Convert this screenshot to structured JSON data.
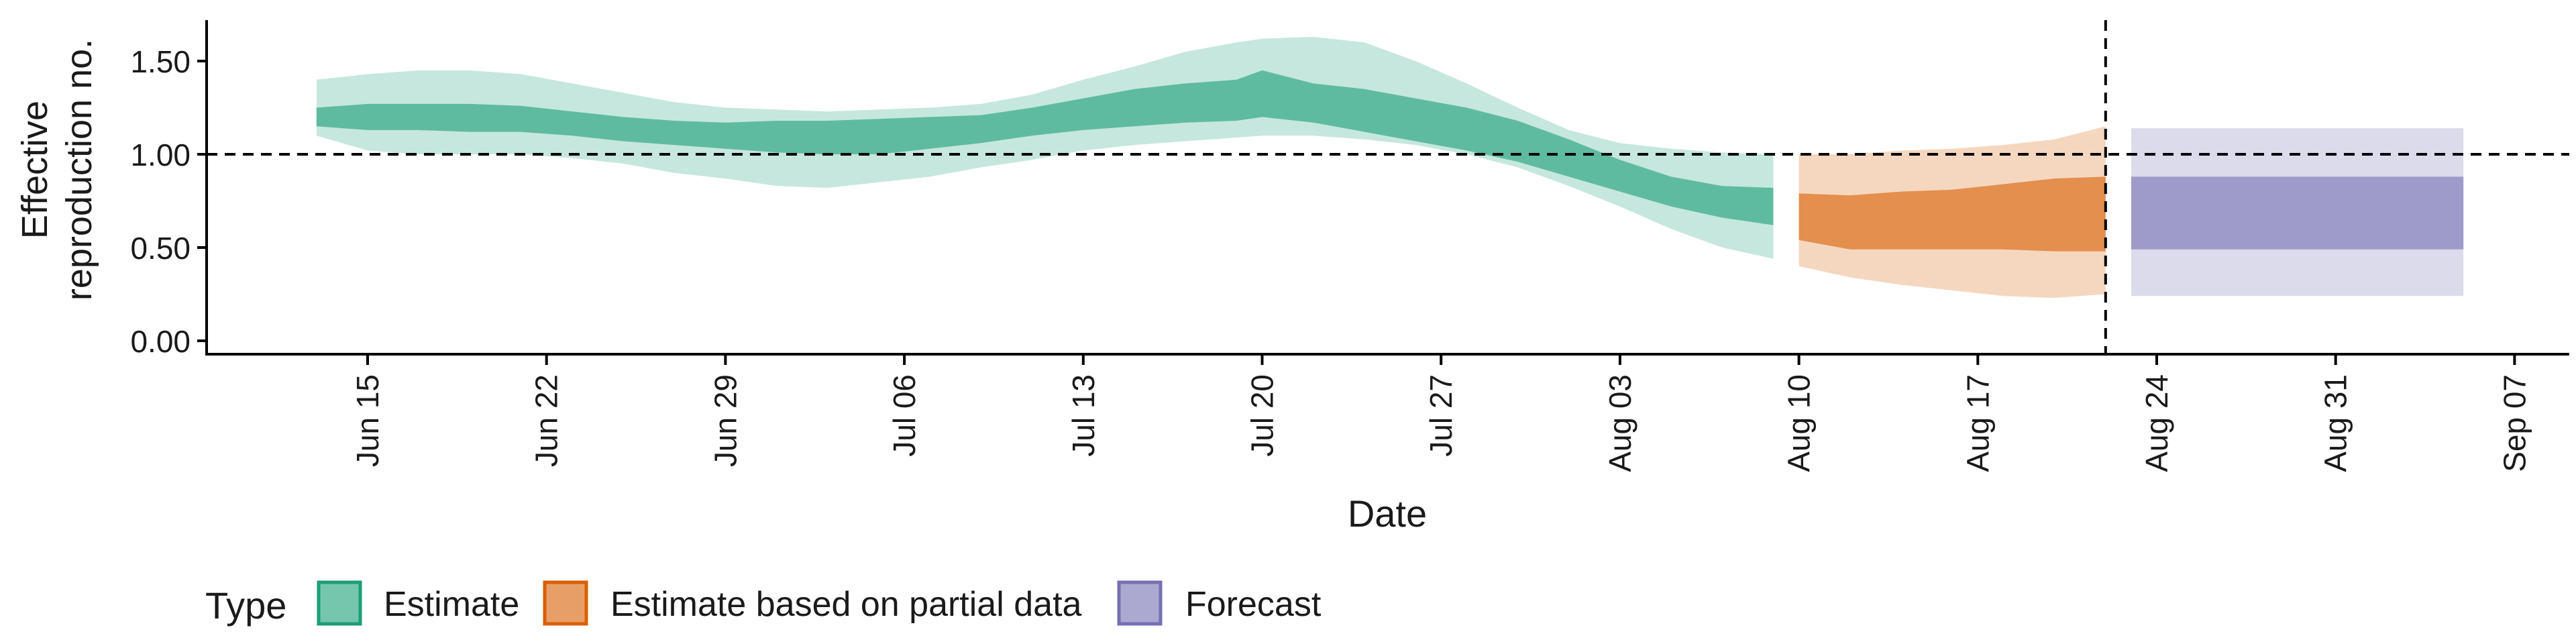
{
  "chart_data": {
    "type": "area",
    "title": "",
    "xlabel": "Date",
    "ylabel_lines": [
      "Effective",
      "reproduction no."
    ],
    "x_ticks": [
      "Jun 15",
      "Jun 22",
      "Jun 29",
      "Jul 06",
      "Jul 13",
      "Jul 20",
      "Jul 27",
      "Aug 03",
      "Aug 10",
      "Aug 17",
      "Aug 24",
      "Aug 31",
      "Sep 07"
    ],
    "y_ticks": [
      "0.00",
      "0.50",
      "1.00",
      "1.50"
    ],
    "ylim": [
      0,
      1.5
    ],
    "reference_line_y": 1.0,
    "forecast_start_date": "Aug 22",
    "legend": {
      "title": "Type",
      "position": "bottom",
      "items": [
        "Estimate",
        "Estimate based on partial data",
        "Forecast"
      ]
    },
    "colors": {
      "Estimate": "#1b9e77",
      "Estimate based on partial data": "#d95f02",
      "Forecast": "#7570b3"
    },
    "series": [
      {
        "name": "Estimate",
        "x": [
          "Jun 13",
          "Jun 15",
          "Jun 17",
          "Jun 19",
          "Jun 21",
          "Jun 23",
          "Jun 25",
          "Jun 27",
          "Jun 29",
          "Jul 01",
          "Jul 03",
          "Jul 05",
          "Jul 07",
          "Jul 09",
          "Jul 11",
          "Jul 13",
          "Jul 15",
          "Jul 17",
          "Jul 19",
          "Jul 20",
          "Jul 22",
          "Jul 24",
          "Jul 26",
          "Jul 28",
          "Jul 30",
          "Aug 01",
          "Aug 03",
          "Aug 05",
          "Aug 07",
          "Aug 09"
        ],
        "lower_outer": [
          1.1,
          1.02,
          1.0,
          1.0,
          1.0,
          0.98,
          0.95,
          0.9,
          0.87,
          0.83,
          0.82,
          0.85,
          0.88,
          0.93,
          0.97,
          1.02,
          1.05,
          1.07,
          1.09,
          1.1,
          1.1,
          1.08,
          1.05,
          1.0,
          0.93,
          0.83,
          0.72,
          0.6,
          0.5,
          0.44
        ],
        "lower_inner": [
          1.15,
          1.13,
          1.13,
          1.12,
          1.12,
          1.1,
          1.07,
          1.05,
          1.03,
          1.01,
          1.0,
          1.0,
          1.03,
          1.06,
          1.1,
          1.13,
          1.15,
          1.17,
          1.18,
          1.2,
          1.17,
          1.12,
          1.07,
          1.02,
          0.96,
          0.88,
          0.8,
          0.72,
          0.66,
          0.62
        ],
        "upper_inner": [
          1.25,
          1.27,
          1.27,
          1.27,
          1.26,
          1.23,
          1.2,
          1.18,
          1.17,
          1.18,
          1.18,
          1.19,
          1.2,
          1.21,
          1.25,
          1.3,
          1.35,
          1.38,
          1.4,
          1.45,
          1.38,
          1.35,
          1.3,
          1.25,
          1.18,
          1.08,
          0.97,
          0.88,
          0.83,
          0.82
        ],
        "upper_outer": [
          1.4,
          1.43,
          1.45,
          1.45,
          1.43,
          1.38,
          1.33,
          1.28,
          1.25,
          1.24,
          1.23,
          1.24,
          1.25,
          1.27,
          1.32,
          1.4,
          1.47,
          1.55,
          1.6,
          1.62,
          1.63,
          1.6,
          1.5,
          1.38,
          1.25,
          1.13,
          1.06,
          1.03,
          1.01,
          1.0
        ]
      },
      {
        "name": "Estimate based on partial data",
        "x": [
          "Aug 10",
          "Aug 12",
          "Aug 14",
          "Aug 16",
          "Aug 18",
          "Aug 20",
          "Aug 22"
        ],
        "lower_outer": [
          0.4,
          0.34,
          0.3,
          0.27,
          0.24,
          0.23,
          0.25
        ],
        "lower_inner": [
          0.54,
          0.49,
          0.49,
          0.49,
          0.49,
          0.48,
          0.48
        ],
        "upper_inner": [
          0.79,
          0.78,
          0.8,
          0.81,
          0.84,
          0.87,
          0.88
        ],
        "upper_outer": [
          1.0,
          1.0,
          1.02,
          1.03,
          1.05,
          1.08,
          1.15
        ]
      },
      {
        "name": "Forecast",
        "x": [
          "Aug 23",
          "Sep 05"
        ],
        "lower_outer": [
          0.24,
          0.24
        ],
        "lower_inner": [
          0.49,
          0.49
        ],
        "upper_inner": [
          0.88,
          0.88
        ],
        "upper_outer": [
          1.14,
          1.14
        ]
      }
    ]
  }
}
